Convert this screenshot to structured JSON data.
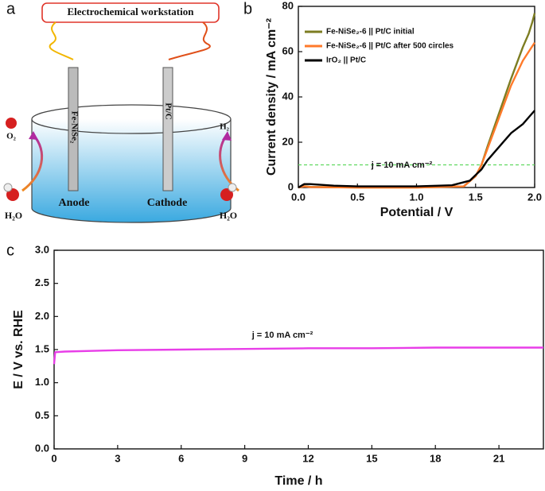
{
  "panel_labels": [
    "a",
    "b",
    "c"
  ],
  "schematic": {
    "workstation": "Electrochemical workstation",
    "anode_electrode": "Fe-NiSe₂",
    "cathode_electrode": "Pt/C",
    "anode": "Anode",
    "cathode": "Cathode",
    "left_reactant": "H₂O",
    "right_reactant": "H₂O",
    "left_product": "O₂",
    "right_product": "H₂"
  },
  "chart_data": [
    {
      "type": "line",
      "xlabel": "Potential / V",
      "ylabel": "Current density / mA cm⁻²",
      "xlim": [
        0,
        2
      ],
      "ylim": [
        0,
        80
      ],
      "xticks": [
        {
          "value": 0,
          "label": "0.0"
        },
        {
          "value": 0.5,
          "label": "0.5"
        },
        {
          "value": 1,
          "label": "1.0"
        },
        {
          "value": 1.5,
          "label": "1.5"
        },
        {
          "value": 2,
          "label": "2.0"
        }
      ],
      "yticks": [
        0,
        20,
        40,
        60,
        80
      ],
      "legend": "upper left",
      "series": [
        {
          "name": "Fe-NiSe₂-6 || Pt/C initial",
          "color": "#7d7d22",
          "x": [
            0,
            0.05,
            0.1,
            0.5,
            1.0,
            1.4,
            1.5,
            1.55,
            1.6,
            1.7,
            1.8,
            1.9,
            1.95,
            1.98,
            2.0
          ],
          "values": [
            0,
            0.6,
            0.3,
            0,
            0,
            0.5,
            5,
            10,
            18,
            33,
            48,
            62,
            68,
            73,
            77
          ]
        },
        {
          "name": "Fe-NiSe₂-6 || Pt/C after 500 circles",
          "color": "#ff7a2a",
          "x": [
            0,
            0.05,
            0.1,
            0.5,
            1.0,
            1.4,
            1.5,
            1.55,
            1.6,
            1.7,
            1.8,
            1.9,
            1.95,
            2.0
          ],
          "values": [
            0,
            0.5,
            0.2,
            0,
            0,
            0.5,
            5,
            10,
            17,
            31,
            45,
            56,
            60,
            64
          ]
        },
        {
          "name": "IrO₂ || Pt/C",
          "color": "#000000",
          "x": [
            0,
            0.05,
            0.1,
            0.3,
            0.5,
            1.0,
            1.3,
            1.45,
            1.55,
            1.6,
            1.7,
            1.8,
            1.9,
            1.95,
            2.0
          ],
          "values": [
            0,
            1.5,
            1.5,
            0.8,
            0.5,
            0.5,
            1,
            3,
            8,
            12,
            18,
            24,
            28,
            31,
            34
          ]
        }
      ],
      "hlines": [
        {
          "value": 10,
          "color": "#5fd85f"
        }
      ],
      "annotation": {
        "text": "j = 10 mA cm⁻²",
        "color": "#e0201c"
      }
    },
    {
      "type": "line",
      "xlabel": "Time / h",
      "ylabel": "E / V vs. RHE",
      "xlim": [
        0,
        23.1
      ],
      "ylim": [
        0,
        3
      ],
      "xticks": [
        0,
        3,
        6,
        9,
        12,
        15,
        18,
        21
      ],
      "yticks": [
        {
          "value": 0,
          "label": "0.0"
        },
        {
          "value": 0.5,
          "label": "0.5"
        },
        {
          "value": 1,
          "label": "1.0"
        },
        {
          "value": 1.5,
          "label": "1.5"
        },
        {
          "value": 2,
          "label": "2.0"
        },
        {
          "value": 2.5,
          "label": "2.5"
        },
        {
          "value": 3,
          "label": "3.0"
        }
      ],
      "series": [
        {
          "color": "#e83ee8",
          "x": [
            0,
            0.05,
            0.5,
            3,
            6,
            9,
            12,
            15,
            18,
            21,
            23.1
          ],
          "values": [
            1.28,
            1.46,
            1.47,
            1.49,
            1.5,
            1.51,
            1.52,
            1.52,
            1.53,
            1.53,
            1.53
          ]
        }
      ],
      "annotation": {
        "text": "j = 10 mA cm⁻²",
        "color": "#d62bd6"
      }
    }
  ]
}
